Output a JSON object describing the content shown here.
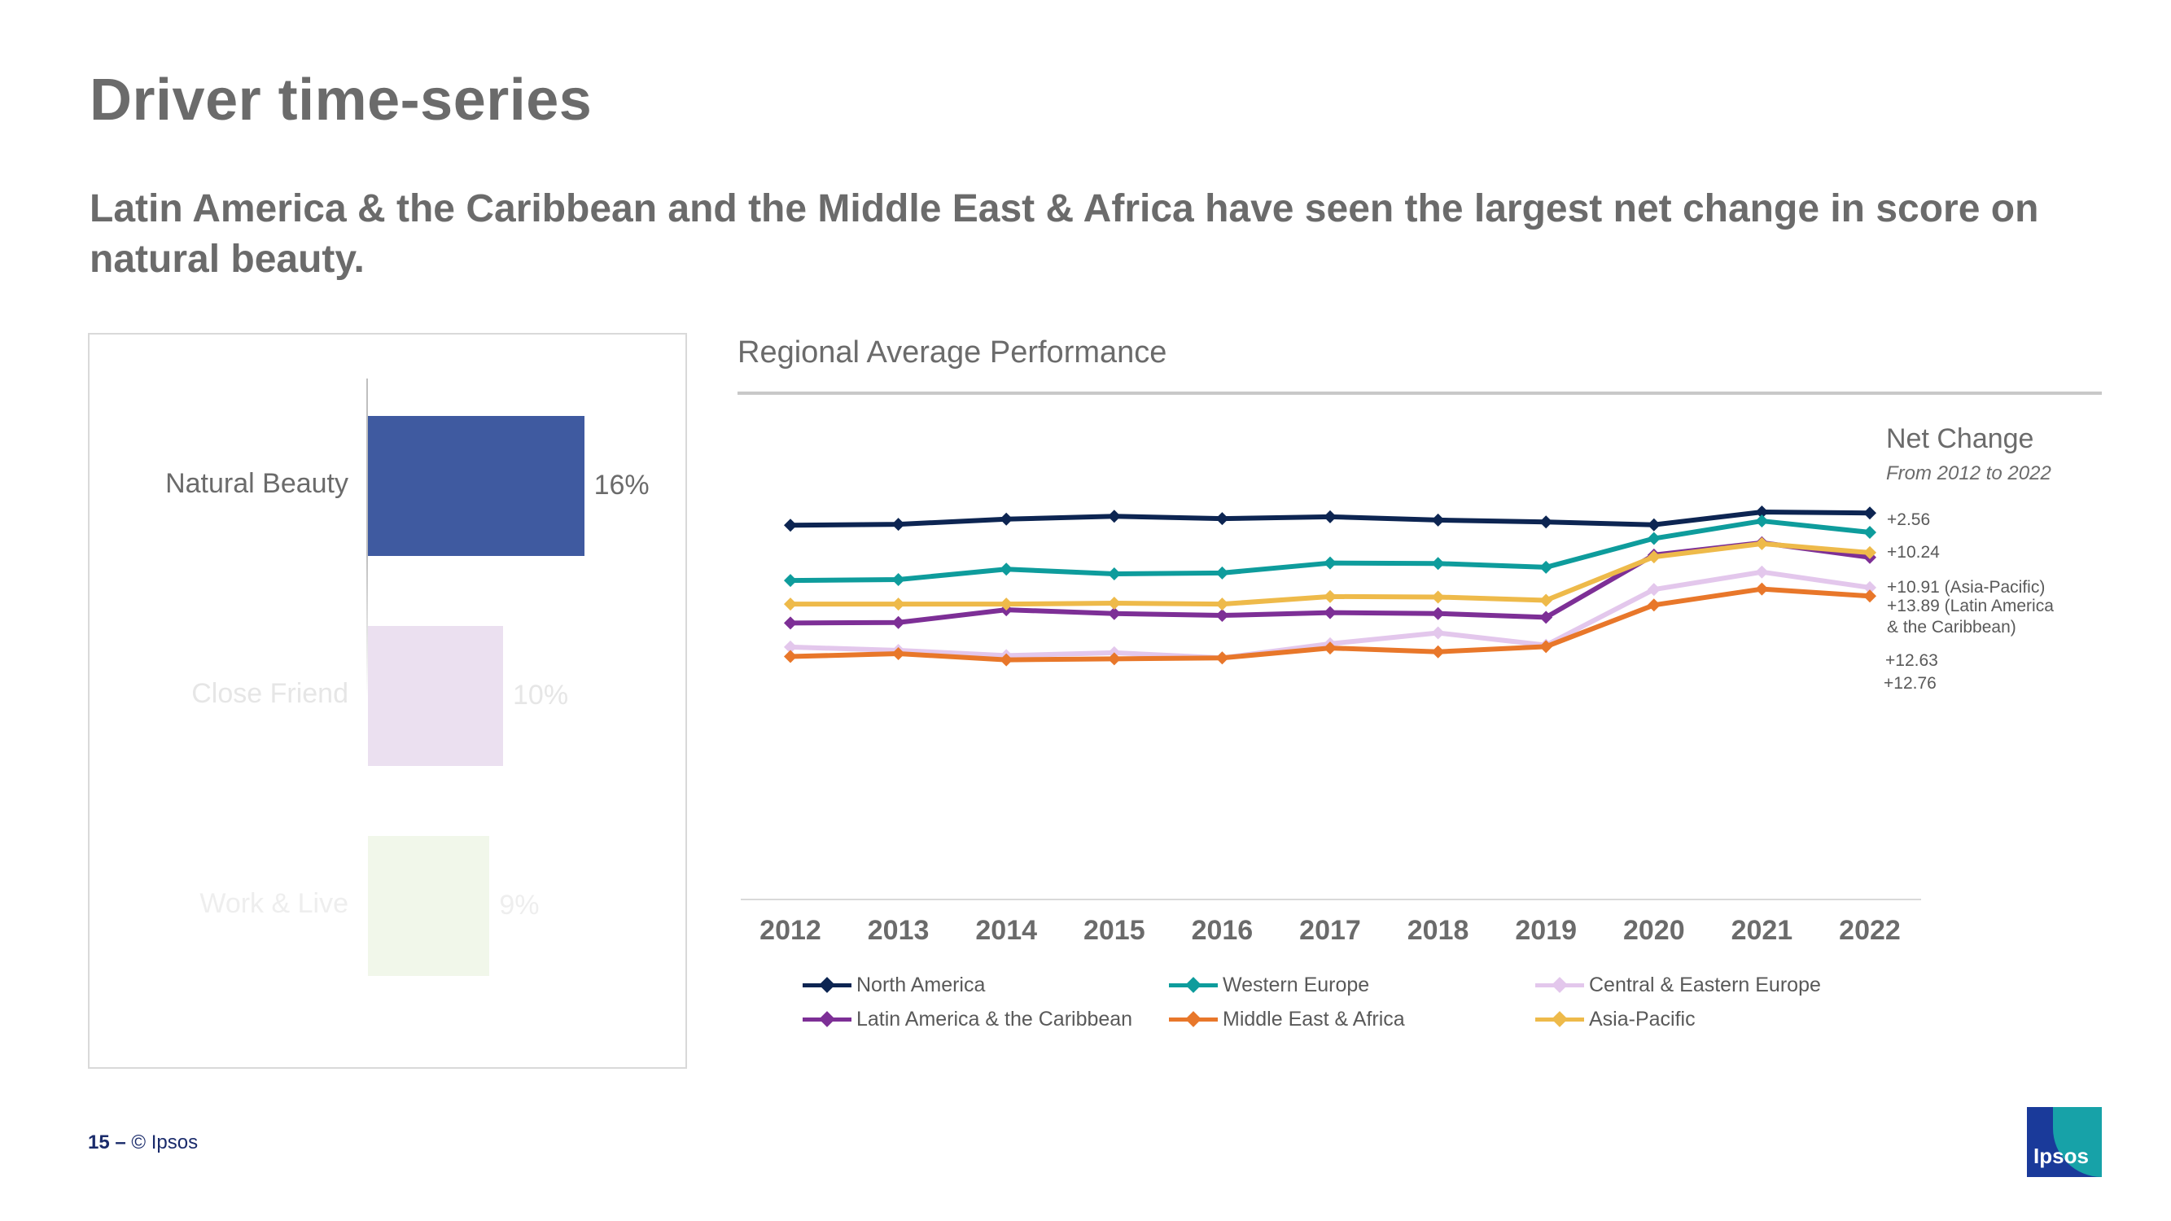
{
  "title": "Driver time-series",
  "subtitle": "Latin America & the Caribbean and the Middle East & Africa have seen the largest net change in score on natural beauty.",
  "bar_panel": {
    "bars": [
      {
        "label": "Natural Beauty",
        "value": 16,
        "value_label": "16%",
        "color": "#3f5aa0",
        "label_color": "#6b6b6b"
      },
      {
        "label": "Close Friend",
        "value": 10,
        "value_label": "10%",
        "color": "#ebe0f0",
        "label_color": "#e6e6e6"
      },
      {
        "label": "Work & Live",
        "value": 9,
        "value_label": "9%",
        "color": "#f1f7ea",
        "label_color": "#eeeeee"
      }
    ]
  },
  "chart_title": "Regional Average Performance",
  "net_change": {
    "title": "Net Change",
    "subtitle": "From 2012 to 2022",
    "labels": [
      "+2.56",
      "+10.24",
      "+10.91 (Asia-Pacific)",
      "+13.89 (Latin America",
      "& the Caribbean)",
      "+12.63",
      "+12.76"
    ]
  },
  "chart_data": {
    "type": "line",
    "x": [
      "2012",
      "2013",
      "2014",
      "2015",
      "2016",
      "2017",
      "2018",
      "2019",
      "2020",
      "2021",
      "2022"
    ],
    "ylim": [
      0,
      100
    ],
    "grid": false,
    "legend_position": "bottom",
    "series": [
      {
        "name": "North America",
        "color": "#0d2552",
        "values": [
          78.4,
          78.6,
          79.7,
          80.3,
          79.8,
          80.2,
          79.5,
          79.1,
          78.5,
          81.2,
          81.0
        ]
      },
      {
        "name": "Western Europe",
        "color": "#0e9c9c",
        "values": [
          66.7,
          66.9,
          69.1,
          68.1,
          68.3,
          70.4,
          70.3,
          69.5,
          75.6,
          79.3,
          76.9
        ]
      },
      {
        "name": "Central & Eastern Europe",
        "color": "#e3c7ec",
        "values": [
          52.6,
          51.9,
          50.8,
          51.4,
          50.3,
          53.3,
          55.6,
          53.0,
          64.8,
          68.5,
          65.2
        ]
      },
      {
        "name": "Latin America & the Caribbean",
        "color": "#7d2f96",
        "values": [
          57.7,
          57.8,
          60.5,
          59.7,
          59.3,
          59.9,
          59.7,
          58.9,
          72.1,
          74.7,
          71.6
        ]
      },
      {
        "name": "Middle East & Africa",
        "color": "#e8772a",
        "values": [
          50.6,
          51.2,
          49.9,
          50.1,
          50.3,
          52.4,
          51.6,
          52.7,
          61.5,
          64.9,
          63.4
        ]
      },
      {
        "name": "Asia-Pacific",
        "color": "#eeba4a",
        "values": [
          61.7,
          61.7,
          61.7,
          61.9,
          61.7,
          63.3,
          63.2,
          62.5,
          71.7,
          74.5,
          72.6
        ]
      }
    ]
  },
  "footer": {
    "page": "15",
    "dash": "–",
    "copyright": "© Ipsos"
  },
  "logo_text": "Ipsos"
}
